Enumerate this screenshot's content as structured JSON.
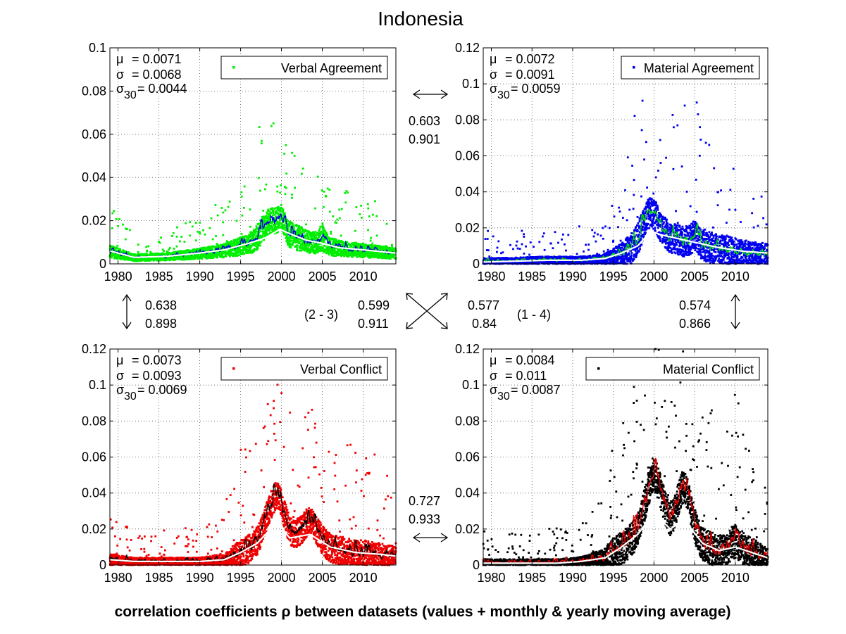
{
  "title": "Indonesia",
  "footer": "correlation coefficients ρ between datasets (values + monthly & yearly moving average)",
  "chart_data": [
    {
      "type": "scatter",
      "legend": "Verbal Agreement",
      "legend_placement": "top-right",
      "point_color": "#00ee00",
      "monthly_color": "#0000dd",
      "yearly_color": "#ffffff",
      "xlim": [
        1979,
        2014
      ],
      "ylim": [
        0,
        0.1
      ],
      "yticks": [
        "0",
        "0.02",
        "0.04",
        "0.06",
        "0.08",
        "0.1"
      ],
      "xticks": [
        "1980",
        "1985",
        "1990",
        "1995",
        "2000",
        "2005",
        "2010"
      ],
      "grid": true,
      "stats": {
        "mu_label": "μ",
        "mu": "= 0.0071",
        "sigma_label": "σ",
        "sigma": "= 0.0068",
        "s30_label": "σ",
        "s30_sub": "30",
        "s30": "= 0.0044"
      },
      "baseline": 0.0055,
      "spread": 0.009,
      "peaks": [
        [
          1998.5,
          0.007,
          1.4
        ],
        [
          2000,
          0.004,
          0.5
        ],
        [
          2005,
          0.003,
          0.5
        ]
      ],
      "yearly_avg": {
        "x": [
          1979,
          1982,
          1986,
          1990,
          1993,
          1996,
          1998,
          1999.8,
          2001,
          2003,
          2005,
          2007,
          2010,
          2014
        ],
        "y": [
          0.006,
          0.003,
          0.0035,
          0.005,
          0.0065,
          0.0095,
          0.012,
          0.016,
          0.014,
          0.011,
          0.0095,
          0.0075,
          0.0065,
          0.005
        ]
      }
    },
    {
      "type": "scatter",
      "legend": "Material Agreement",
      "legend_placement": "top-right",
      "point_color": "#0000ee",
      "monthly_color": "#00dd00",
      "yearly_color": "#ffffff",
      "xlim": [
        1979,
        2014
      ],
      "ylim": [
        0,
        0.12
      ],
      "yticks": [
        "0",
        "0.02",
        "0.04",
        "0.06",
        "0.08",
        "0.1",
        "0.12"
      ],
      "xticks": [
        "1980",
        "1985",
        "1990",
        "1995",
        "2000",
        "2005",
        "2010"
      ],
      "grid": true,
      "stats": {
        "mu_label": "μ",
        "mu": "= 0.0072",
        "sigma_label": "σ",
        "sigma": "= 0.0091",
        "s30_label": "σ",
        "s30_sub": "30",
        "s30": "= 0.0059"
      },
      "baseline": 0.004,
      "spread": 0.013,
      "peaks": [
        [
          1999.5,
          0.012,
          1.5
        ],
        [
          2005,
          0.004,
          0.6
        ]
      ],
      "yearly_avg": {
        "x": [
          1979,
          1983,
          1987,
          1991,
          1994,
          1996,
          1998,
          1999.6,
          2001,
          2003,
          2005,
          2008,
          2011,
          2014
        ],
        "y": [
          0.001,
          0.0015,
          0.002,
          0.002,
          0.003,
          0.006,
          0.01,
          0.018,
          0.016,
          0.014,
          0.012,
          0.009,
          0.007,
          0.006
        ]
      }
    },
    {
      "type": "scatter",
      "legend": "Verbal Conflict",
      "legend_placement": "top-right",
      "point_color": "#ee0000",
      "monthly_color": "#000000",
      "yearly_color": "#ffffff",
      "xlim": [
        1979,
        2014
      ],
      "ylim": [
        0,
        0.12
      ],
      "yticks": [
        "0",
        "0.02",
        "0.04",
        "0.06",
        "0.08",
        "0.1",
        "0.12"
      ],
      "xticks": [
        "1980",
        "1985",
        "1990",
        "1995",
        "2000",
        "2005",
        "2010"
      ],
      "grid": true,
      "stats": {
        "mu_label": "μ",
        "mu": "= 0.0073",
        "sigma_label": "σ",
        "sigma": "= 0.0093",
        "s30_label": "σ",
        "s30_sub": "30",
        "s30": "= 0.0069"
      },
      "baseline": 0.003,
      "spread": 0.012,
      "peaks": [
        [
          1999.3,
          0.016,
          1.6
        ],
        [
          2003.5,
          0.008,
          1.3
        ]
      ],
      "yearly_avg": {
        "x": [
          1979,
          1982,
          1986,
          1990,
          1993,
          1995,
          1997,
          1999.5,
          2001,
          2003.5,
          2006,
          2009,
          2012,
          2014
        ],
        "y": [
          0.003,
          0.002,
          0.002,
          0.002,
          0.003,
          0.007,
          0.012,
          0.024,
          0.015,
          0.017,
          0.01,
          0.007,
          0.006,
          0.005
        ]
      }
    },
    {
      "type": "scatter",
      "legend": "Material Conflict",
      "legend_placement": "top-right",
      "point_color": "#000000",
      "monthly_color": "#ee0000",
      "yearly_color": "#ffffff",
      "xlim": [
        1979,
        2014
      ],
      "ylim": [
        0,
        0.12
      ],
      "yticks": [
        "0",
        "0.02",
        "0.04",
        "0.06",
        "0.08",
        "0.1",
        "0.12"
      ],
      "xticks": [
        "1980",
        "1985",
        "1990",
        "1995",
        "2000",
        "2005",
        "2010"
      ],
      "grid": true,
      "stats": {
        "mu_label": "μ",
        "mu": "= 0.0084",
        "sigma_label": "σ",
        "sigma": "= 0.011",
        "s30_label": "σ",
        "s30_sub": "30",
        "s30": "= 0.0087"
      },
      "baseline": 0.003,
      "spread": 0.014,
      "peaks": [
        [
          2000,
          0.022,
          1.5
        ],
        [
          2003.7,
          0.02,
          1.2
        ],
        [
          2010,
          0.004,
          1.0
        ]
      ],
      "yearly_avg": {
        "x": [
          1979,
          1984,
          1988,
          1991,
          1994,
          1996,
          1998,
          2000,
          2002,
          2003.7,
          2006,
          2008,
          2010,
          2012,
          2014
        ],
        "y": [
          0.001,
          0.001,
          0.001,
          0.002,
          0.004,
          0.01,
          0.017,
          0.029,
          0.02,
          0.025,
          0.012,
          0.008,
          0.01,
          0.007,
          0.004
        ]
      }
    }
  ],
  "correlations": {
    "top": {
      "a": "0.603",
      "b": "0.901"
    },
    "left": {
      "a": "0.638",
      "b": "0.898"
    },
    "right": {
      "a": "0.574",
      "b": "0.866"
    },
    "bottom": {
      "a": "0.727",
      "b": "0.933"
    },
    "diag_23": {
      "label": "(2 - 3)",
      "a": "0.599",
      "b": "0.911"
    },
    "diag_14": {
      "label": "(1 - 4)",
      "a": "0.577",
      "b": "0.84"
    }
  }
}
